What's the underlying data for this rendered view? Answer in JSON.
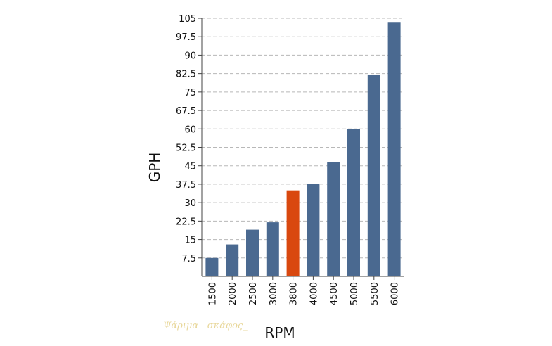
{
  "chart_data": {
    "type": "bar",
    "categories": [
      "1500",
      "2000",
      "2500",
      "3000",
      "3800",
      "4000",
      "4500",
      "5000",
      "5500",
      "6000"
    ],
    "values": [
      7.5,
      13,
      19,
      22,
      35,
      37.5,
      46.5,
      60,
      82,
      103.5
    ],
    "highlight_index": 4,
    "xlabel": "RPM",
    "ylabel": "GPH",
    "ylim": [
      0,
      105
    ],
    "yticks": [
      7.5,
      15,
      22.5,
      30,
      37.5,
      45,
      52.5,
      60,
      67.5,
      75,
      82.5,
      90,
      97.5,
      105
    ],
    "ytick_labels": [
      "7.5",
      "15",
      "22.5",
      "30",
      "37.5",
      "45",
      "52.5",
      "60",
      "67.5",
      "75",
      "82.5",
      "90",
      "97.5",
      "105"
    ],
    "grid": true,
    "colors": {
      "bar": "#4a6990",
      "highlight": "#d9480f",
      "grid": "#b8b8b8",
      "axis": "#444444"
    }
  },
  "watermark_text": "Ψάριμα - σκάφος_"
}
